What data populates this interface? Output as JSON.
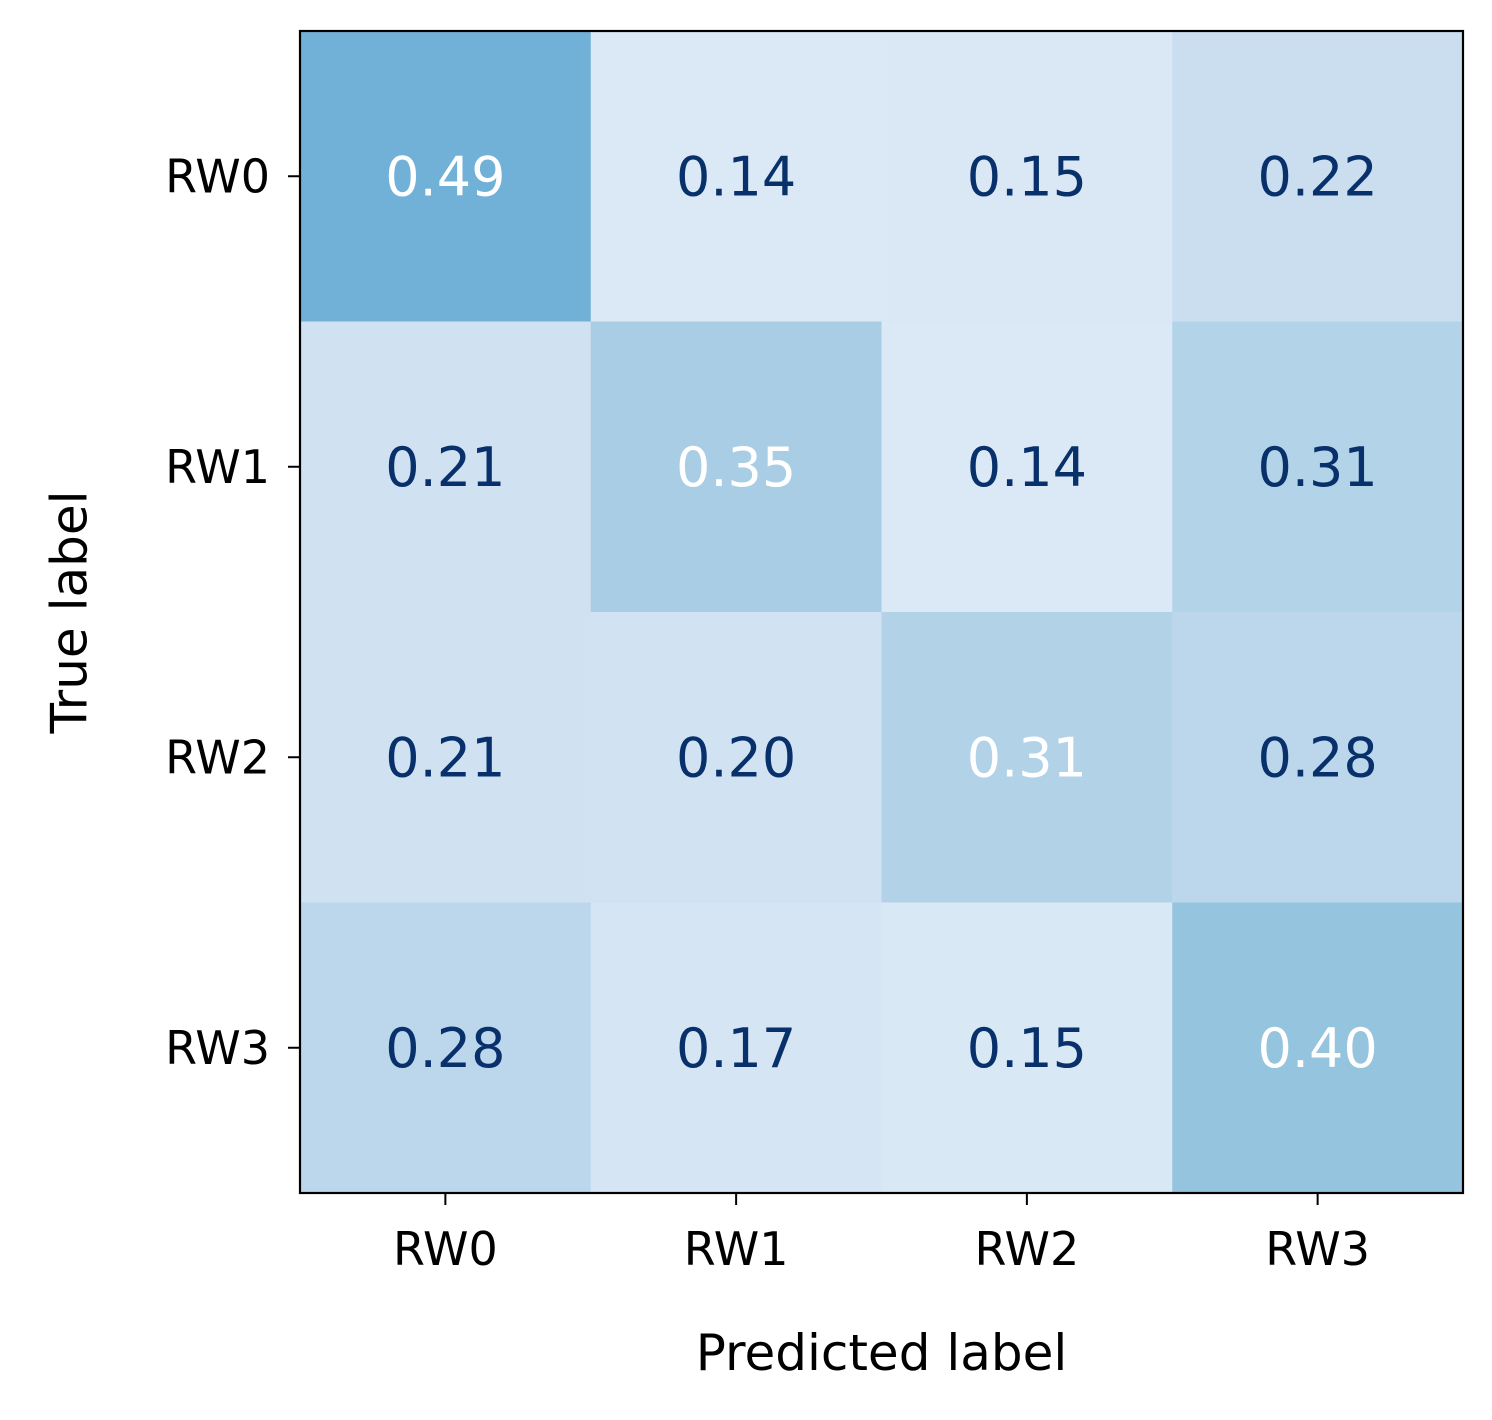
{
  "chart_data": {
    "type": "heatmap",
    "colormap": "Blues",
    "color_range": [
      0.14,
      0.49
    ],
    "x_categories": [
      "RW0",
      "RW1",
      "RW2",
      "RW3"
    ],
    "y_categories": [
      "RW0",
      "RW1",
      "RW2",
      "RW3"
    ],
    "values": [
      [
        0.49,
        0.14,
        0.15,
        0.22
      ],
      [
        0.21,
        0.35,
        0.14,
        0.31
      ],
      [
        0.21,
        0.2,
        0.31,
        0.28
      ],
      [
        0.28,
        0.17,
        0.15,
        0.4
      ]
    ],
    "value_labels": [
      [
        "0.49",
        "0.14",
        "0.15",
        "0.22"
      ],
      [
        "0.21",
        "0.35",
        "0.14",
        "0.31"
      ],
      [
        "0.21",
        "0.20",
        "0.31",
        "0.28"
      ],
      [
        "0.28",
        "0.17",
        "0.15",
        "0.40"
      ]
    ],
    "highlight_diagonal": true,
    "xlabel": "Predicted label",
    "ylabel": "True label",
    "colors": {
      "cell_text_dark": "#08306b",
      "cell_text_light": "#ffffff",
      "cells": [
        [
          "#71b1d7",
          "#dbe8f5",
          "#dae8f5",
          "#cadef0"
        ],
        [
          "#d0e1f2",
          "#a8cde4",
          "#dbe8f5",
          "#b3d3e8"
        ],
        [
          "#d0e1f2",
          "#d1e2f3",
          "#b2d2e8",
          "#bcd7eb"
        ],
        [
          "#bcd7eb",
          "#d5e5f4",
          "#d9e8f5",
          "#95c4df"
        ]
      ]
    }
  }
}
